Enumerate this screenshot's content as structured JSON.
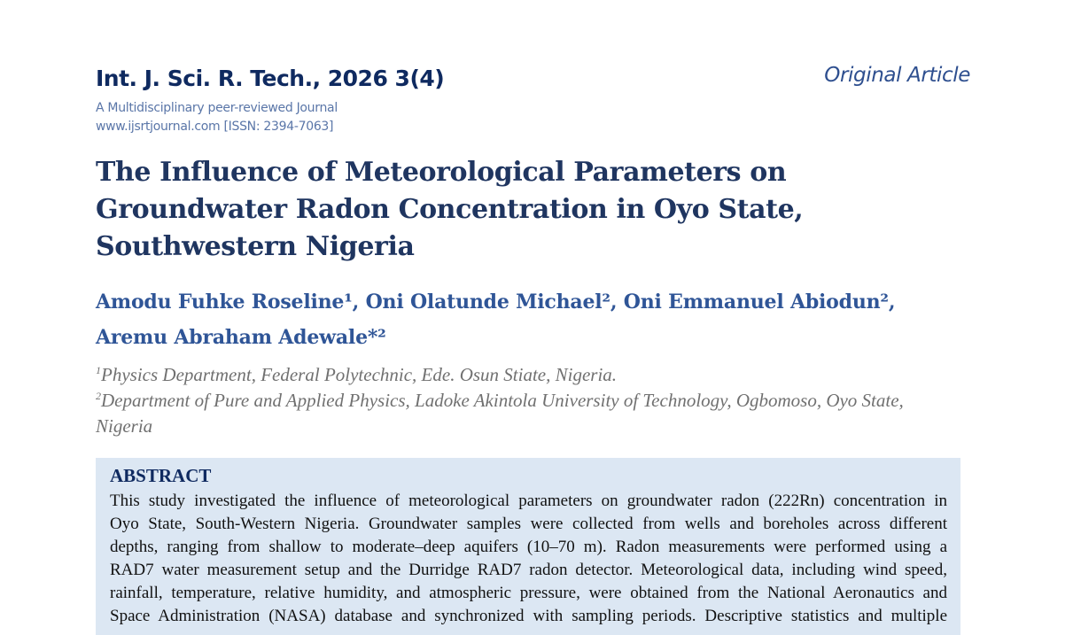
{
  "header": {
    "journal": "Int. J. Sci. R. Tech., 2026 3(4)",
    "tagline": "A Multidisciplinary peer-reviewed Journal",
    "website": "www.ijsrtjournal.com [ISSN: 2394-7063]",
    "article_type": "Original Article"
  },
  "title_lines": [
    "The Influence of Meteorological Parameters on",
    "Groundwater Radon Concentration in Oyo State,",
    "Southwestern Nigeria"
  ],
  "author_lines": [
    "Amodu Fuhke Roseline¹, Oni Olatunde Michael², Oni Emmanuel Abiodun²,",
    "Aremu Abraham Adewale*²"
  ],
  "affiliations": [
    {
      "sup": "1",
      "text": "Physics Department, Federal Polytechnic, Ede. Osun Stiate, Nigeria."
    },
    {
      "sup": "2",
      "text": "Department of Pure and Applied Physics, Ladoke Akintola University of Technology, Ogbomoso, Oyo State,"
    },
    {
      "sup": "",
      "text": "Nigeria"
    }
  ],
  "abstract": {
    "heading": "ABSTRACT",
    "lines": [
      "This study investigated the influence of meteorological parameters on groundwater radon (222Rn) concentration in",
      "Oyo State, South-Western Nigeria. Groundwater samples were collected from wells and boreholes across different",
      "depths, ranging from shallow to moderate–deep aquifers (10–70 m). Radon measurements were performed using a",
      "RAD7 water measurement setup and the Durridge RAD7 radon detector. Meteorological data, including wind speed,",
      "rainfall, temperature, relative humidity, and atmospheric pressure, were obtained from the National Aeronautics and",
      "Space Administration (NASA) database and synchronized with sampling periods. Descriptive statistics and multiple"
    ]
  },
  "colors": {
    "journal": "#0f2a60",
    "title": "#1f3560",
    "authors": "#2f5597",
    "abstract_bg": "#dce7f3"
  }
}
